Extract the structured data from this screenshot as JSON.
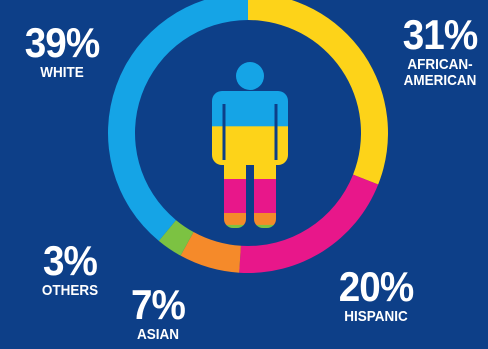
{
  "chart_data": {
    "type": "pie",
    "series": [
      {
        "name": "AFRICAN-AMERICAN",
        "value": 31,
        "color": "#fdd319"
      },
      {
        "name": "HISPANIC",
        "value": 20,
        "color": "#e8178a"
      },
      {
        "name": "ASIAN",
        "value": 7,
        "color": "#f58a2a"
      },
      {
        "name": "OTHERS",
        "value": 3,
        "color": "#7cc242"
      },
      {
        "name": "WHITE",
        "value": 39,
        "color": "#15a4e6"
      }
    ],
    "center_icon": "person-icon"
  },
  "labels": {
    "white": {
      "pct": "39%",
      "name": "WHITE"
    },
    "african_american": {
      "pct": "31%",
      "name": "AFRICAN-AMERICAN"
    },
    "hispanic": {
      "pct": "20%",
      "name": "HISPANIC"
    },
    "asian": {
      "pct": "7%",
      "name": "ASIAN"
    },
    "others": {
      "pct": "3%",
      "name": "OTHERS"
    }
  }
}
